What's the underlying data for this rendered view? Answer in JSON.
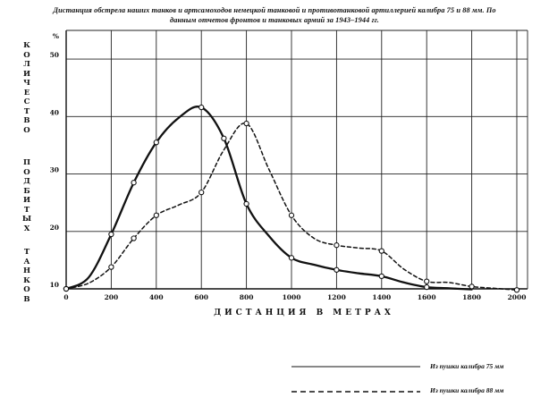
{
  "chart_data": {
    "type": "line",
    "title_lines": [
      "Дистанция обстрела наших танков и артсамоходов немецкой танковой и противотанковой артиллерией калибра 75 и 88 мм. По",
      "данным отчетов фронтов и танковых армий за 1943–1944 гг."
    ],
    "ylabel_parts": [
      "КОЛИЧЕСТВО",
      "ПОДБИТЫХ",
      "ТАНКОВ"
    ],
    "xlabel": "ДИСТАНЦИЯ В МЕТРАХ",
    "y_unit": "%",
    "x_ticks": [
      "0",
      "200",
      "400",
      "600",
      "800",
      "1000",
      "1200",
      "1400",
      "1600",
      "1800",
      "2000"
    ],
    "y_ticks": [
      "10",
      "20",
      "30",
      "40",
      "50"
    ],
    "xlim": [
      0,
      2000
    ],
    "ylim": [
      10,
      55
    ],
    "grid": true,
    "legend_position": "bottom-right",
    "x": [
      0,
      100,
      200,
      300,
      400,
      500,
      600,
      700,
      800,
      900,
      1000,
      1100,
      1200,
      1300,
      1400,
      1500,
      1600,
      1700,
      1800,
      1900,
      2000
    ],
    "series": [
      {
        "name": "Из пушки калибра 75 мм",
        "style": "solid",
        "values": [
          10,
          12,
          19.5,
          28.5,
          35.5,
          39.8,
          41.6,
          36.2,
          24.8,
          19.2,
          15.4,
          14.2,
          13.3,
          12.7,
          12.2,
          11.1,
          10.3,
          10.1,
          9.9,
          null,
          null
        ],
        "markers": [
          0,
          200,
          300,
          400,
          600,
          700,
          800,
          1000,
          1200,
          1400,
          1600
        ]
      },
      {
        "name": "Из пушки калибра 88 мм",
        "style": "dashed",
        "values": [
          10,
          11,
          13.8,
          18.8,
          22.8,
          24.6,
          26.8,
          34.2,
          38.8,
          30.8,
          22.8,
          18.8,
          17.6,
          17.1,
          16.6,
          13.4,
          11.3,
          11.1,
          10.4,
          10.1,
          9.8
        ],
        "markers": [
          0,
          200,
          300,
          400,
          600,
          800,
          1000,
          1200,
          1400,
          1600,
          1800,
          2000
        ]
      }
    ],
    "colors": {
      "ink": "#111111",
      "grid": "#222222",
      "background": "#ffffff"
    }
  }
}
